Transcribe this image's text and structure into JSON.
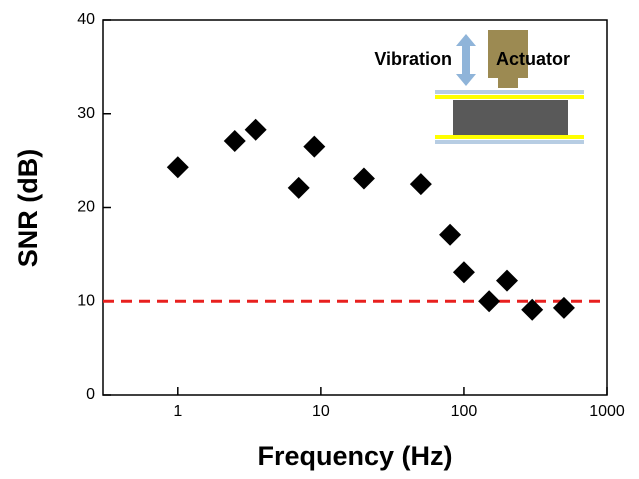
{
  "chart_data": {
    "type": "scatter",
    "x_label": "Frequency (Hz)",
    "y_label": "SNR (dB)",
    "x": [
      1,
      2.5,
      3.5,
      7,
      9,
      20,
      50,
      80,
      100,
      150,
      200,
      300,
      500
    ],
    "values": [
      24.3,
      27.1,
      28.3,
      22.1,
      26.5,
      23.1,
      22.5,
      17.1,
      13.1,
      10.0,
      12.2,
      9.1,
      9.3
    ],
    "color": "#000000",
    "xlim": [
      0.3,
      1000
    ],
    "xticks": [
      1,
      10,
      100,
      1000
    ],
    "x_log": true,
    "ylim": [
      0,
      40
    ],
    "yticks": [
      0,
      10,
      20,
      30,
      40
    ],
    "reference_line": {
      "value": 10,
      "color": "#e8201f"
    },
    "annotations": [
      "Vibration",
      "Actuator"
    ]
  }
}
